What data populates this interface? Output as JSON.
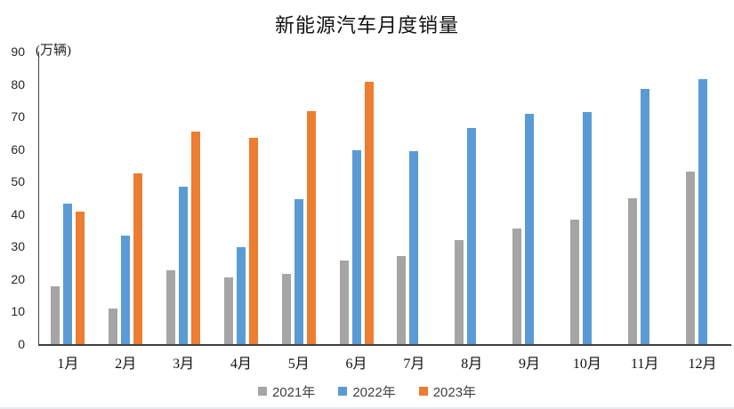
{
  "title": "新能源汽车月度销量",
  "unit_label": "(万辆)",
  "colors": {
    "series_2021": "#A5A5A5",
    "series_2022": "#5B9BD5",
    "series_2023": "#ED7D31",
    "axis": "#404040"
  },
  "chart_data": {
    "type": "bar",
    "title": "新能源汽车月度销量",
    "ylabel": "(万辆)",
    "xlabel": "",
    "categories": [
      "1月",
      "2月",
      "3月",
      "4月",
      "5月",
      "6月",
      "7月",
      "8月",
      "9月",
      "10月",
      "11月",
      "12月"
    ],
    "series": [
      {
        "name": "2021年",
        "color": "#A5A5A5",
        "values": [
          17.9,
          11.0,
          22.6,
          20.6,
          21.7,
          25.6,
          27.1,
          32.1,
          35.7,
          38.3,
          45.0,
          53.1
        ]
      },
      {
        "name": "2022年",
        "color": "#5B9BD5",
        "values": [
          43.1,
          33.4,
          48.4,
          29.9,
          44.7,
          59.6,
          59.3,
          66.6,
          70.8,
          71.4,
          78.6,
          81.4
        ]
      },
      {
        "name": "2023年",
        "color": "#ED7D31",
        "values": [
          40.8,
          52.5,
          65.3,
          63.6,
          71.7,
          80.6,
          null,
          null,
          null,
          null,
          null,
          null
        ]
      }
    ],
    "ylim": [
      0,
      90
    ],
    "yticks": [
      0,
      10,
      20,
      30,
      40,
      50,
      60,
      70,
      80,
      90
    ],
    "grid": false,
    "legend_position": "bottom"
  }
}
